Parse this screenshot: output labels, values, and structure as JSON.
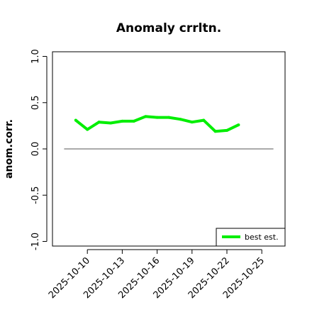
{
  "chart_data": {
    "type": "line",
    "title": "Anomaly crrltn.",
    "ylabel": "anom.corr.",
    "xlabel": "",
    "ylim": [
      -1.05,
      1.05
    ],
    "yticks": [
      -1.0,
      -0.5,
      0.0,
      0.5,
      1.0
    ],
    "ytick_labels": [
      "-1.0",
      "-0.5",
      "0.0",
      "0.5",
      "1.0"
    ],
    "xlim": [
      "2025-10-07",
      "2025-10-27"
    ],
    "xticks": [
      "2025-10-10",
      "2025-10-13",
      "2025-10-16",
      "2025-10-19",
      "2025-10-22",
      "2025-10-25"
    ],
    "highlight_tick": "2025-10-16",
    "highlight_color": "#228b22",
    "reference_line": {
      "y": 0.0,
      "x_start": "2025-10-08",
      "x_end": "2025-10-26",
      "color": "#555555"
    },
    "series": [
      {
        "name": "best est.",
        "color": "#00ee00",
        "x": [
          "2025-10-09",
          "2025-10-10",
          "2025-10-11",
          "2025-10-12",
          "2025-10-13",
          "2025-10-14",
          "2025-10-15",
          "2025-10-16",
          "2025-10-17",
          "2025-10-18",
          "2025-10-19",
          "2025-10-20",
          "2025-10-21",
          "2025-10-22",
          "2025-10-23"
        ],
        "values": [
          0.31,
          0.21,
          0.29,
          0.28,
          0.3,
          0.3,
          0.35,
          0.34,
          0.34,
          0.32,
          0.29,
          0.31,
          0.19,
          0.2,
          0.26
        ]
      }
    ],
    "legend": {
      "position": "bottom-right",
      "entries": [
        "best est."
      ]
    }
  }
}
